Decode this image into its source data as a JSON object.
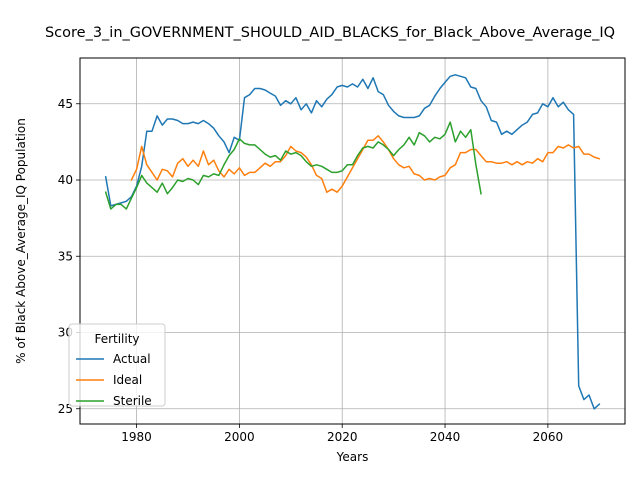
{
  "chart_data": {
    "type": "line",
    "title": "Score_3_in_GOVERNMENT_SHOULD_AID_BLACKS_for_Black_Above_Average_IQ",
    "xlabel": "Years",
    "ylabel": "% of Black Above_Average_IQ Population",
    "xlim": [
      1969,
      2075
    ],
    "ylim": [
      24,
      48
    ],
    "xticks": [
      1980,
      2000,
      2020,
      2040,
      2060
    ],
    "yticks": [
      25,
      30,
      35,
      40,
      45
    ],
    "grid": true,
    "legend": {
      "title": "Fertility",
      "placement": "lower-left"
    },
    "series": [
      {
        "name": "Actual",
        "color": "#1f77b4",
        "x": [
          1974,
          1975,
          1976,
          1977,
          1978,
          1979,
          1980,
          1981,
          1982,
          1983,
          1984,
          1985,
          1986,
          1987,
          1988,
          1989,
          1990,
          1991,
          1992,
          1993,
          1994,
          1995,
          1996,
          1997,
          1998,
          1999,
          2000,
          2001,
          2002,
          2003,
          2004,
          2005,
          2006,
          2007,
          2008,
          2009,
          2010,
          2011,
          2012,
          2013,
          2014,
          2015,
          2016,
          2017,
          2018,
          2019,
          2020,
          2021,
          2022,
          2023,
          2024,
          2025,
          2026,
          2027,
          2028,
          2029,
          2030,
          2031,
          2032,
          2033,
          2034,
          2035,
          2036,
          2037,
          2038,
          2039,
          2040,
          2041,
          2042,
          2043,
          2044,
          2045,
          2046,
          2047,
          2048,
          2049,
          2050,
          2051,
          2052,
          2053,
          2054,
          2055,
          2056,
          2057,
          2058,
          2059,
          2060,
          2061,
          2062,
          2063,
          2064,
          2065,
          2066,
          2067,
          2068,
          2069,
          2070
        ],
        "values": [
          40.2,
          38.3,
          38.4,
          38.5,
          38.6,
          38.9,
          39.6,
          40.9,
          43.2,
          43.2,
          44.2,
          43.6,
          44.0,
          44.0,
          43.9,
          43.7,
          43.7,
          43.8,
          43.7,
          43.9,
          43.7,
          43.4,
          42.9,
          42.5,
          41.8,
          42.8,
          42.6,
          45.4,
          45.6,
          46.0,
          46.0,
          45.9,
          45.7,
          45.5,
          44.9,
          45.2,
          45.0,
          45.4,
          44.6,
          45.0,
          44.4,
          45.2,
          44.8,
          45.3,
          45.6,
          46.1,
          46.2,
          46.1,
          46.3,
          46.1,
          46.6,
          46.0,
          46.7,
          45.8,
          45.6,
          44.9,
          44.5,
          44.2,
          44.1,
          44.1,
          44.1,
          44.2,
          44.7,
          44.9,
          45.5,
          46.0,
          46.4,
          46.8,
          46.9,
          46.8,
          46.7,
          46.1,
          46.0,
          45.2,
          44.8,
          43.9,
          43.8,
          43.0,
          43.2,
          43.0,
          43.3,
          43.6,
          43.8,
          44.3,
          44.4,
          45.0,
          44.8,
          45.4,
          44.8,
          45.1,
          44.6,
          44.3,
          26.5,
          25.6,
          25.9,
          25.0,
          25.3
        ]
      },
      {
        "name": "Ideal",
        "color": "#ff7f0e",
        "x": [
          1979,
          1980,
          1981,
          1982,
          1983,
          1984,
          1985,
          1986,
          1987,
          1988,
          1989,
          1990,
          1991,
          1992,
          1993,
          1994,
          1995,
          1996,
          1997,
          1998,
          1999,
          2000,
          2001,
          2002,
          2003,
          2004,
          2005,
          2006,
          2007,
          2008,
          2009,
          2010,
          2011,
          2012,
          2013,
          2014,
          2015,
          2016,
          2017,
          2018,
          2019,
          2020,
          2021,
          2022,
          2023,
          2024,
          2025,
          2026,
          2027,
          2028,
          2029,
          2030,
          2031,
          2032,
          2033,
          2034,
          2035,
          2036,
          2037,
          2038,
          2039,
          2040,
          2041,
          2042,
          2043,
          2044,
          2045,
          2046,
          2047,
          2048,
          2049,
          2050,
          2051,
          2052,
          2053,
          2054,
          2055,
          2056,
          2057,
          2058,
          2059,
          2060,
          2061,
          2062,
          2063,
          2064,
          2065,
          2066,
          2067,
          2068,
          2069,
          2070
        ],
        "values": [
          40.0,
          40.7,
          42.2,
          41.0,
          40.5,
          40.0,
          40.7,
          40.6,
          40.2,
          41.1,
          41.4,
          40.9,
          41.3,
          40.9,
          41.9,
          41.0,
          41.3,
          40.6,
          40.2,
          40.7,
          40.4,
          40.8,
          40.3,
          40.5,
          40.5,
          40.8,
          41.1,
          40.9,
          41.2,
          41.2,
          41.6,
          42.2,
          41.9,
          41.8,
          41.5,
          41.0,
          40.3,
          40.1,
          39.2,
          39.4,
          39.2,
          39.6,
          40.2,
          40.8,
          41.4,
          42.0,
          42.6,
          42.6,
          42.9,
          42.5,
          42.0,
          41.4,
          41.0,
          40.8,
          40.9,
          40.4,
          40.3,
          40.0,
          40.1,
          40.0,
          40.2,
          40.3,
          40.8,
          41.0,
          41.8,
          41.8,
          42.0,
          42.0,
          41.6,
          41.2,
          41.2,
          41.1,
          41.1,
          41.2,
          41.0,
          41.2,
          41.0,
          41.2,
          41.1,
          41.4,
          41.2,
          41.8,
          41.8,
          42.2,
          42.1,
          42.3,
          42.1,
          42.2,
          41.7,
          41.7,
          41.5,
          41.4
        ]
      },
      {
        "name": "Sterile",
        "color": "#2ca02c",
        "x": [
          1974,
          1975,
          1976,
          1977,
          1978,
          1979,
          1980,
          1981,
          1982,
          1983,
          1984,
          1985,
          1986,
          1987,
          1988,
          1989,
          1990,
          1991,
          1992,
          1993,
          1994,
          1995,
          1996,
          1997,
          1998,
          1999,
          2000,
          2001,
          2002,
          2003,
          2004,
          2005,
          2006,
          2007,
          2008,
          2009,
          2010,
          2011,
          2012,
          2013,
          2014,
          2015,
          2016,
          2017,
          2018,
          2019,
          2020,
          2021,
          2022,
          2023,
          2024,
          2025,
          2026,
          2027,
          2028,
          2029,
          2030,
          2031,
          2032,
          2033,
          2034,
          2035,
          2036,
          2037,
          2038,
          2039,
          2040,
          2041,
          2042,
          2043,
          2044,
          2045,
          2046,
          2047
        ],
        "values": [
          39.2,
          38.1,
          38.4,
          38.4,
          38.1,
          38.8,
          39.5,
          40.3,
          39.8,
          39.5,
          39.2,
          39.8,
          39.1,
          39.5,
          40.0,
          39.9,
          40.1,
          40.0,
          39.7,
          40.3,
          40.2,
          40.4,
          40.3,
          41.0,
          41.6,
          42.0,
          42.7,
          42.4,
          42.3,
          42.3,
          42.0,
          41.7,
          41.5,
          41.6,
          41.3,
          41.9,
          41.7,
          41.8,
          41.6,
          41.2,
          40.9,
          41.0,
          40.9,
          40.7,
          40.5,
          40.5,
          40.6,
          41.0,
          41.0,
          41.6,
          42.1,
          42.2,
          42.1,
          42.5,
          42.3,
          42.0,
          41.6,
          42.0,
          42.3,
          42.8,
          42.3,
          43.1,
          42.9,
          42.5,
          42.8,
          42.7,
          43.0,
          43.8,
          42.5,
          43.2,
          42.8,
          43.3,
          41.0,
          39.1
        ]
      }
    ]
  }
}
